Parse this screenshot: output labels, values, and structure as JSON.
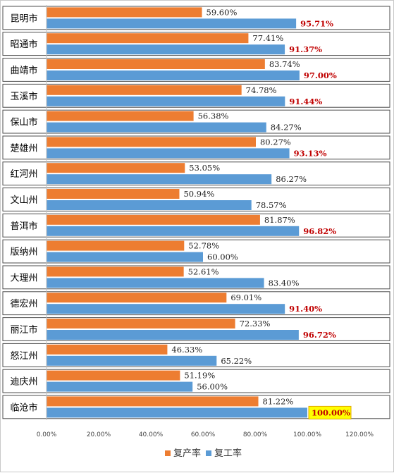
{
  "chart_data": {
    "type": "bar",
    "orientation": "horizontal",
    "categories": [
      "昆明市",
      "昭通市",
      "曲靖市",
      "玉溪市",
      "保山市",
      "楚雄州",
      "红河州",
      "文山州",
      "普洱市",
      "版纳州",
      "大理州",
      "德宏州",
      "丽江市",
      "怒江州",
      "迪庆州",
      "临沧市"
    ],
    "series": [
      {
        "name": "复产率",
        "color": "#ED7D31",
        "values": [
          59.6,
          77.41,
          83.74,
          74.78,
          56.38,
          80.27,
          53.05,
          50.94,
          81.87,
          52.78,
          52.61,
          69.01,
          72.33,
          46.33,
          51.19,
          81.22
        ],
        "labels": [
          "59.60%",
          "77.41%",
          "83.74%",
          "74.78%",
          "56.38%",
          "80.27%",
          "53.05%",
          "50.94%",
          "81.87%",
          "52.78%",
          "52.61%",
          "69.01%",
          "72.33%",
          "46.33%",
          "51.19%",
          "81.22%"
        ]
      },
      {
        "name": "复工率",
        "color": "#5B9BD5",
        "values": [
          95.71,
          91.37,
          97.0,
          91.44,
          84.27,
          93.13,
          86.27,
          78.57,
          96.82,
          60.0,
          83.4,
          91.4,
          96.72,
          65.22,
          56.0,
          100.0
        ],
        "labels": [
          "95.71%",
          "91.37%",
          "97.00%",
          "91.44%",
          "84.27%",
          "93.13%",
          "86.27%",
          "78.57%",
          "96.82%",
          "60.00%",
          "83.40%",
          "91.40%",
          "96.72%",
          "65.22%",
          "56.00%",
          "100.00%"
        ],
        "highlight_color": "#C00000"
      }
    ],
    "xlim": [
      0,
      120
    ],
    "x_ticks": [
      "0.00%",
      "20.00%",
      "40.00%",
      "60.00%",
      "80.00%",
      "100.00%",
      "120.00%"
    ],
    "grid": false,
    "legend_position": "bottom",
    "highlight_box": {
      "category": "临沧市",
      "fill": "#FFFF00",
      "border": "#E0A800"
    }
  }
}
